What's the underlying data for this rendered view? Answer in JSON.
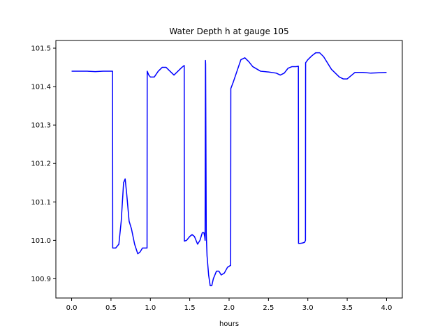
{
  "chart_data": {
    "type": "line",
    "title": "Water Depth h at gauge 105",
    "xlabel": "hours",
    "ylabel": "",
    "xlim": [
      -0.2,
      4.2
    ],
    "ylim": [
      100.85,
      101.52
    ],
    "xticks": [
      0.0,
      0.5,
      1.0,
      1.5,
      2.0,
      2.5,
      3.0,
      3.5,
      4.0
    ],
    "xtick_labels": [
      "0.0",
      "0.5",
      "1.0",
      "1.5",
      "2.0",
      "2.5",
      "3.0",
      "3.5",
      "4.0"
    ],
    "yticks": [
      100.9,
      101.0,
      101.1,
      101.2,
      101.3,
      101.4,
      101.5
    ],
    "ytick_labels": [
      "100.9",
      "101.0",
      "101.1",
      "101.2",
      "101.3",
      "101.4",
      "101.5"
    ],
    "grid": false,
    "series": [
      {
        "color": "#0000ff",
        "x": [
          0.0,
          0.1,
          0.2,
          0.3,
          0.4,
          0.5,
          0.52,
          0.522,
          0.56,
          0.6,
          0.63,
          0.66,
          0.68,
          0.7,
          0.73,
          0.76,
          0.8,
          0.84,
          0.87,
          0.9,
          0.92,
          0.95,
          0.958,
          0.96,
          0.98,
          1.0,
          1.05,
          1.1,
          1.15,
          1.2,
          1.25,
          1.3,
          1.35,
          1.4,
          1.43,
          1.432,
          1.46,
          1.5,
          1.53,
          1.56,
          1.6,
          1.63,
          1.66,
          1.68,
          1.69,
          1.695,
          1.7,
          1.702,
          1.71,
          1.713,
          1.72,
          1.74,
          1.76,
          1.78,
          1.8,
          1.84,
          1.87,
          1.9,
          1.94,
          1.98,
          2.02,
          2.022,
          2.05,
          2.1,
          2.15,
          2.2,
          2.25,
          2.3,
          2.4,
          2.5,
          2.6,
          2.65,
          2.7,
          2.75,
          2.8,
          2.85,
          2.88,
          2.882,
          2.9,
          2.93,
          2.96,
          2.97,
          2.972,
          3.0,
          3.05,
          3.1,
          3.15,
          3.2,
          3.3,
          3.4,
          3.45,
          3.5,
          3.6,
          3.7,
          3.8,
          3.9,
          4.0
        ],
        "y": [
          101.44,
          101.44,
          101.44,
          101.439,
          101.44,
          101.44,
          101.44,
          100.98,
          100.98,
          100.99,
          101.05,
          101.15,
          101.16,
          101.12,
          101.05,
          101.03,
          100.99,
          100.965,
          100.97,
          100.98,
          100.98,
          100.98,
          100.98,
          101.44,
          101.43,
          101.425,
          101.425,
          101.44,
          101.45,
          101.45,
          101.44,
          101.43,
          101.44,
          101.45,
          101.455,
          100.998,
          101.0,
          101.01,
          101.015,
          101.01,
          100.99,
          101.0,
          101.02,
          101.02,
          101.01,
          101.0,
          101.468,
          101.458,
          101.02,
          101.0,
          100.96,
          100.91,
          100.882,
          100.882,
          100.9,
          100.92,
          100.92,
          100.91,
          100.915,
          100.93,
          100.935,
          101.395,
          101.41,
          101.44,
          101.47,
          101.475,
          101.465,
          101.452,
          101.44,
          101.438,
          101.435,
          101.43,
          101.435,
          101.448,
          101.452,
          101.452,
          101.453,
          100.992,
          100.992,
          100.993,
          100.995,
          101.0,
          101.462,
          101.47,
          101.48,
          101.488,
          101.488,
          101.478,
          101.445,
          101.425,
          101.42,
          101.42,
          101.437,
          101.437,
          101.435,
          101.436,
          101.437
        ]
      }
    ]
  }
}
